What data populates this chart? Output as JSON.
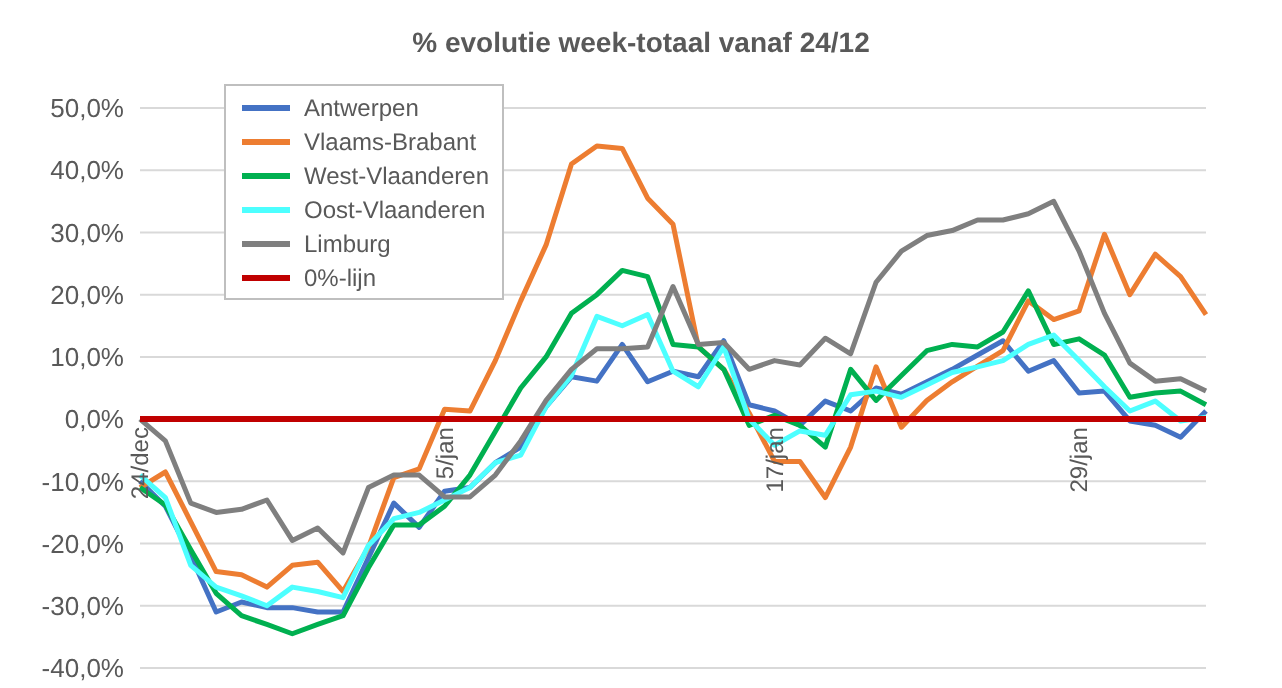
{
  "chart_data": {
    "type": "line",
    "title": "% evolutie week-totaal  vanaf 24/12",
    "categories": [
      "24/dec",
      null,
      null,
      null,
      null,
      null,
      null,
      null,
      null,
      null,
      null,
      null,
      "5/jan",
      null,
      null,
      null,
      null,
      null,
      null,
      null,
      null,
      null,
      null,
      null,
      null,
      "17/jan",
      null,
      null,
      null,
      null,
      null,
      null,
      null,
      null,
      null,
      null,
      null,
      "29/jan",
      null,
      null,
      null,
      null,
      null
    ],
    "series": [
      {
        "name": "Antwerpen",
        "color": "#4472c4",
        "values": [
          -10,
          -14,
          -22,
          -31,
          -29.4,
          -30.3,
          -30.3,
          -31,
          -31,
          -22.3,
          -13.5,
          -17.4,
          -11.6,
          -11,
          -7,
          -4.5,
          2,
          6.8,
          6.1,
          12,
          6,
          7.7,
          6.8,
          12.6,
          2.3,
          1.3,
          -1,
          2.9,
          1.3,
          5,
          4,
          6,
          8,
          10.3,
          12.6,
          7.7,
          9.4,
          4.2,
          4.5,
          -0.3,
          -1,
          -2.9,
          1.3
        ]
      },
      {
        "name": "Vlaams-Brabant",
        "color": "#ed7d31",
        "values": [
          -11,
          -8.5,
          -16.5,
          -24.5,
          -25,
          -27,
          -23.5,
          -23,
          -27.7,
          -20.6,
          -9.4,
          -8,
          1.6,
          1.3,
          9.4,
          19,
          28,
          41,
          43.9,
          43.5,
          35.5,
          31.3,
          11.6,
          8,
          1,
          -6.8,
          -6.8,
          -12.6,
          -4.5,
          8.4,
          -1.3,
          3,
          6,
          8.5,
          11,
          19,
          16,
          17.4,
          29.7,
          20,
          26.5,
          22.9,
          16.8
        ]
      },
      {
        "name": "West-Vlaanderen",
        "color": "#00b050",
        "values": [
          -11,
          -13.8,
          -21,
          -28,
          -31.6,
          -33,
          -34.5,
          -33,
          -31.6,
          -23.9,
          -17,
          -17,
          -14,
          -9,
          -2,
          5,
          10,
          17,
          20,
          23.9,
          22.9,
          12,
          11.6,
          8,
          -1,
          0.6,
          -1,
          -4.5,
          8,
          3,
          7,
          11,
          12,
          11.6,
          14,
          20.6,
          12,
          12.9,
          10.3,
          3.5,
          4.2,
          4.5,
          2.3
        ]
      },
      {
        "name": "Oost-Vlaanderen",
        "color": "#4dffff",
        "values": [
          -9,
          -12.6,
          -23.5,
          -27,
          -28.4,
          -30,
          -27,
          -27.7,
          -28.7,
          -20.3,
          -16,
          -15,
          -13,
          -11,
          -7,
          -5.8,
          2,
          7,
          16.5,
          15,
          16.8,
          7.7,
          5.2,
          11.6,
          0,
          -4.2,
          -1.9,
          -2.6,
          3.9,
          4.5,
          3.5,
          5.5,
          7.5,
          8.4,
          9.4,
          12,
          13.5,
          9.4,
          5.2,
          1.3,
          2.9,
          -0.3,
          0.3
        ]
      },
      {
        "name": "Limburg",
        "color": "#7f7f7f",
        "values": [
          0,
          -3.5,
          -13.5,
          -15,
          -14.5,
          -13,
          -19.5,
          -17.5,
          -21.5,
          -11,
          -9,
          -9,
          -12.5,
          -12.5,
          -9,
          -3.5,
          3,
          8,
          11.3,
          11.3,
          11.6,
          21.3,
          12,
          12.3,
          8,
          9.4,
          8.7,
          13,
          10.5,
          22,
          27,
          29.5,
          30.3,
          32,
          32,
          33,
          35,
          27,
          17,
          9,
          6.1,
          6.5,
          4.5
        ]
      },
      {
        "name": "0%-lijn",
        "color": "#c00000",
        "values": [
          0,
          0,
          0,
          0,
          0,
          0,
          0,
          0,
          0,
          0,
          0,
          0,
          0,
          0,
          0,
          0,
          0,
          0,
          0,
          0,
          0,
          0,
          0,
          0,
          0,
          0,
          0,
          0,
          0,
          0,
          0,
          0,
          0,
          0,
          0,
          0,
          0,
          0,
          0,
          0,
          0,
          0,
          0
        ]
      }
    ],
    "ylim": [
      -40,
      50
    ],
    "yticks": [
      {
        "value": -40,
        "label": "-40,0%"
      },
      {
        "value": -30,
        "label": "-30,0%"
      },
      {
        "value": -20,
        "label": "-20,0%"
      },
      {
        "value": -10,
        "label": "-10,0%"
      },
      {
        "value": 0,
        "label": "0,0%"
      },
      {
        "value": 10,
        "label": "10,0%"
      },
      {
        "value": 20,
        "label": "20,0%"
      },
      {
        "value": 30,
        "label": "30,0%"
      },
      {
        "value": 40,
        "label": "40,0%"
      },
      {
        "value": 50,
        "label": "50,0%"
      }
    ],
    "grid": "y",
    "legend": "top left",
    "marker": "none",
    "line_style": "solid"
  }
}
